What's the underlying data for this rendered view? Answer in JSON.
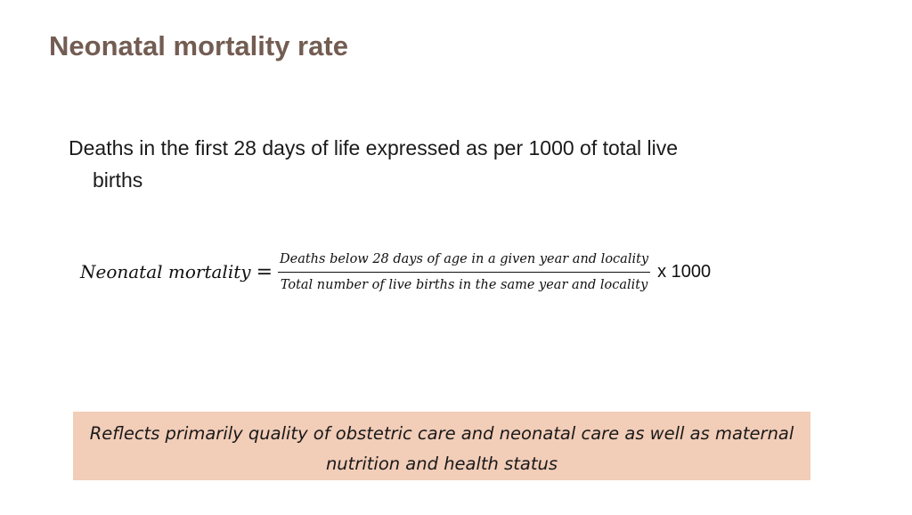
{
  "slide": {
    "title": "Neonatal mortality rate"
  },
  "definition": {
    "line1": "Deaths in the first 28 days of life expressed as per 1000 of total live",
    "line2": "births"
  },
  "formula": {
    "lhs": "Neonatal mortality",
    "equals": "=",
    "numerator": "Deaths below 28 days of age in a given year and locality",
    "denominator": "Total number of live births in the same year and locality",
    "multiplier": "x 1000"
  },
  "note": {
    "line1": "Reflects primarily quality of obstetric care and neonatal care as well as maternal",
    "line2": "nutrition and health status"
  },
  "colors": {
    "title": "#735c52",
    "note_background": "#f2cdb8"
  }
}
